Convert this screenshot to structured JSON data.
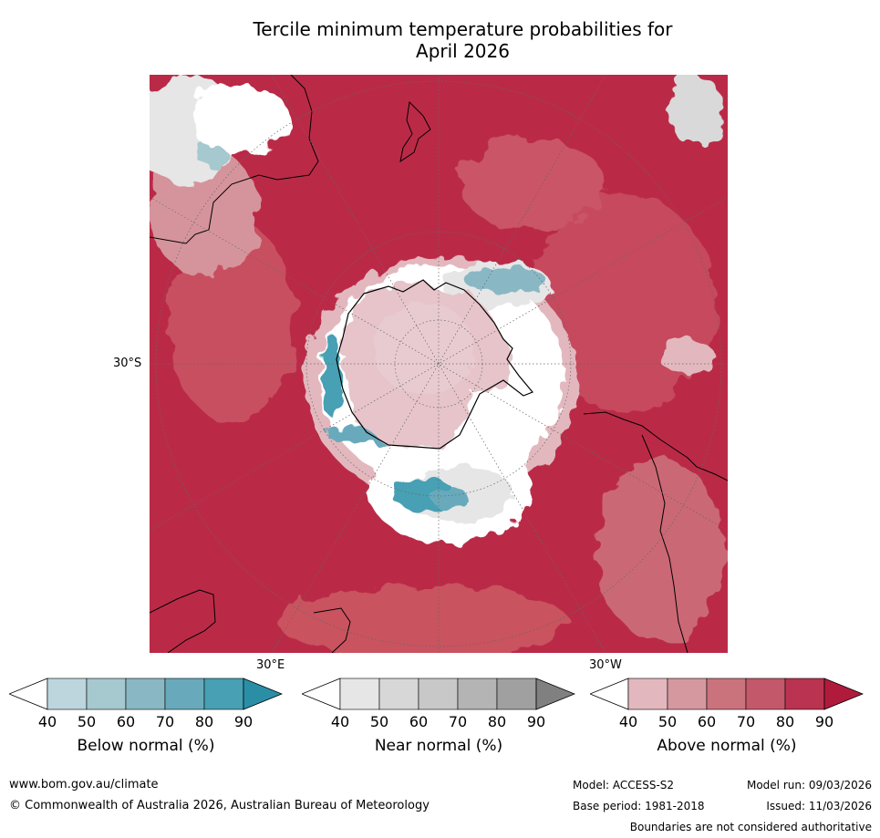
{
  "title_line1": "Tercile minimum temperature probabilities for",
  "title_line2": "April 2026",
  "graticule": {
    "lat_label": "30°S",
    "lon_label_left": "30°E",
    "lon_label_right": "30°W"
  },
  "colorbars": [
    {
      "label": "Below normal (%)",
      "ticks": [
        "40",
        "50",
        "60",
        "70",
        "80",
        "90"
      ],
      "colors": [
        "#ffffff",
        "#bdd6dd",
        "#a6c8cf",
        "#89b8c4",
        "#68aabb",
        "#47a0b3",
        "#2b8ea7"
      ]
    },
    {
      "label": "Near normal (%)",
      "ticks": [
        "40",
        "50",
        "60",
        "70",
        "80",
        "90"
      ],
      "colors": [
        "#ffffff",
        "#e6e6e6",
        "#d7d7d7",
        "#c8c8c8",
        "#b4b4b4",
        "#a0a0a0",
        "#808080"
      ]
    },
    {
      "label": "Above normal (%)",
      "ticks": [
        "40",
        "50",
        "60",
        "70",
        "80",
        "90"
      ],
      "colors": [
        "#ffffff",
        "#e2b8be",
        "#d6989f",
        "#cb737d",
        "#c3586a",
        "#ba3350",
        "#b01b3c"
      ]
    }
  ],
  "footer": {
    "website": "www.bom.gov.au/climate",
    "copyright": "© Commonwealth of Australia 2026, Australian Bureau of Meteorology",
    "model": "Model: ACCESS-S2",
    "model_run": "Model run: 09/03/2026",
    "base_period": "Base period: 1981-2018",
    "issued": "Issued: 11/03/2026",
    "disclaimer": "Boundaries are not considered authoritative"
  }
}
